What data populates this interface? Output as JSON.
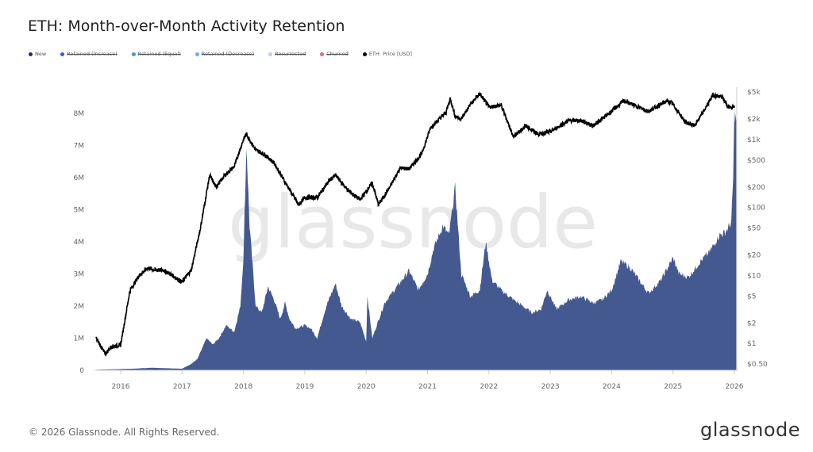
{
  "chart_data": {
    "type": "area",
    "title": "ETH: Month-over-Month Activity Retention",
    "watermark": "glassnode",
    "legend_placement": "top-left",
    "legend": [
      {
        "name": "New",
        "color": "#1f2d6b",
        "active": true
      },
      {
        "name": "Retained (Increase)",
        "color": "#2f5fd6",
        "active": false
      },
      {
        "name": "Retained (Equal)",
        "color": "#4a95e0",
        "active": false
      },
      {
        "name": "Retained (Decrease)",
        "color": "#6aaee8",
        "active": false
      },
      {
        "name": "Resurrected",
        "color": "#b8d0f0",
        "active": false
      },
      {
        "name": "Churned",
        "color": "#e06b80",
        "active": false
      },
      {
        "name": "ETH: Price [USD]",
        "color": "#000000",
        "active": true
      }
    ],
    "x_ticks": [
      "2016",
      "2017",
      "2018",
      "2019",
      "2020",
      "2021",
      "2022",
      "2023",
      "2024",
      "2025",
      "2026"
    ],
    "y_left": {
      "ticks": [
        "0",
        "1M",
        "2M",
        "3M",
        "4M",
        "5M",
        "6M",
        "7M",
        "8M"
      ],
      "range": [
        0,
        8000000
      ]
    },
    "y_right": {
      "scale": "log",
      "ticks": [
        "$0.50",
        "$1",
        "$2",
        "$5",
        "$10",
        "$20",
        "$50",
        "$100",
        "$200",
        "$500",
        "$1k",
        "$2k",
        "$5k"
      ],
      "range": [
        0.5,
        5000
      ]
    },
    "grid": false,
    "series": [
      {
        "name": "New",
        "axis": "left",
        "color": "#44598f",
        "unit": "M addresses",
        "x": [
          2015.6,
          2016.2,
          2016.5,
          2017.0,
          2017.15,
          2017.25,
          2017.4,
          2017.5,
          2017.6,
          2017.72,
          2017.85,
          2017.95,
          2018.0,
          2018.05,
          2018.1,
          2018.2,
          2018.3,
          2018.4,
          2018.5,
          2018.6,
          2018.68,
          2018.75,
          2018.85,
          2019.0,
          2019.1,
          2019.2,
          2019.35,
          2019.5,
          2019.6,
          2019.75,
          2019.9,
          2020.0,
          2020.02,
          2020.1,
          2020.3,
          2020.5,
          2020.7,
          2020.85,
          2021.0,
          2021.1,
          2021.25,
          2021.35,
          2021.45,
          2021.55,
          2021.7,
          2021.85,
          2021.95,
          2022.05,
          2022.2,
          2022.4,
          2022.55,
          2022.7,
          2022.85,
          2022.95,
          2023.1,
          2023.3,
          2023.5,
          2023.7,
          2023.85,
          2024.0,
          2024.15,
          2024.3,
          2024.45,
          2024.6,
          2024.8,
          2025.0,
          2025.1,
          2025.25,
          2025.45,
          2025.6,
          2025.75,
          2025.85,
          2025.95,
          2025.98,
          2026.0,
          2026.03
        ],
        "y": [
          0.02,
          0.05,
          0.08,
          0.05,
          0.2,
          0.35,
          1.0,
          0.8,
          1.0,
          1.4,
          1.2,
          2.0,
          3.5,
          7.0,
          4.5,
          2.0,
          1.8,
          2.6,
          2.2,
          1.6,
          2.1,
          1.6,
          1.3,
          1.4,
          1.3,
          1.0,
          2.0,
          2.7,
          2.0,
          1.6,
          1.5,
          0.9,
          2.3,
          1.0,
          2.1,
          2.6,
          3.1,
          2.5,
          3.0,
          3.8,
          4.5,
          4.2,
          5.7,
          3.0,
          2.3,
          2.5,
          4.0,
          2.8,
          2.5,
          2.2,
          2.0,
          1.8,
          1.9,
          2.5,
          1.9,
          2.2,
          2.3,
          2.1,
          2.2,
          2.5,
          3.4,
          3.2,
          2.8,
          2.4,
          2.8,
          3.5,
          3.0,
          2.9,
          3.4,
          3.7,
          4.2,
          4.3,
          4.6,
          6.0,
          8.0,
          7.8
        ]
      },
      {
        "name": "ETH: Price [USD]",
        "axis": "right",
        "color": "#000000",
        "x": [
          2015.6,
          2015.75,
          2015.85,
          2016.0,
          2016.15,
          2016.3,
          2016.45,
          2016.55,
          2016.7,
          2016.85,
          2017.0,
          2017.15,
          2017.3,
          2017.45,
          2017.55,
          2017.7,
          2017.85,
          2018.0,
          2018.05,
          2018.2,
          2018.35,
          2018.5,
          2018.7,
          2018.9,
          2019.0,
          2019.2,
          2019.4,
          2019.5,
          2019.7,
          2019.9,
          2020.1,
          2020.2,
          2020.4,
          2020.55,
          2020.7,
          2020.9,
          2021.05,
          2021.3,
          2021.37,
          2021.45,
          2021.55,
          2021.7,
          2021.85,
          2022.0,
          2022.2,
          2022.4,
          2022.6,
          2022.8,
          2023.0,
          2023.3,
          2023.5,
          2023.7,
          2023.9,
          2024.2,
          2024.4,
          2024.6,
          2024.9,
          2025.0,
          2025.2,
          2025.35,
          2025.5,
          2025.65,
          2025.8,
          2025.9,
          2026.0
        ],
        "y": [
          1.2,
          0.7,
          0.9,
          0.95,
          6,
          10,
          13,
          12,
          12,
          10,
          8,
          12,
          50,
          300,
          200,
          300,
          400,
          1000,
          1200,
          700,
          600,
          450,
          220,
          110,
          140,
          140,
          250,
          300,
          180,
          130,
          230,
          110,
          210,
          380,
          370,
          600,
          1500,
          2500,
          4000,
          2200,
          2000,
          3300,
          4700,
          3000,
          3200,
          1100,
          1600,
          1200,
          1300,
          1900,
          1900,
          1600,
          2200,
          3700,
          3100,
          2600,
          3700,
          3300,
          1800,
          1600,
          2600,
          4500,
          4200,
          3000,
          3000
        ]
      }
    ]
  },
  "footer": {
    "copyright": "© 2026 Glassnode. All Rights Reserved.",
    "logo": "glassnode"
  }
}
